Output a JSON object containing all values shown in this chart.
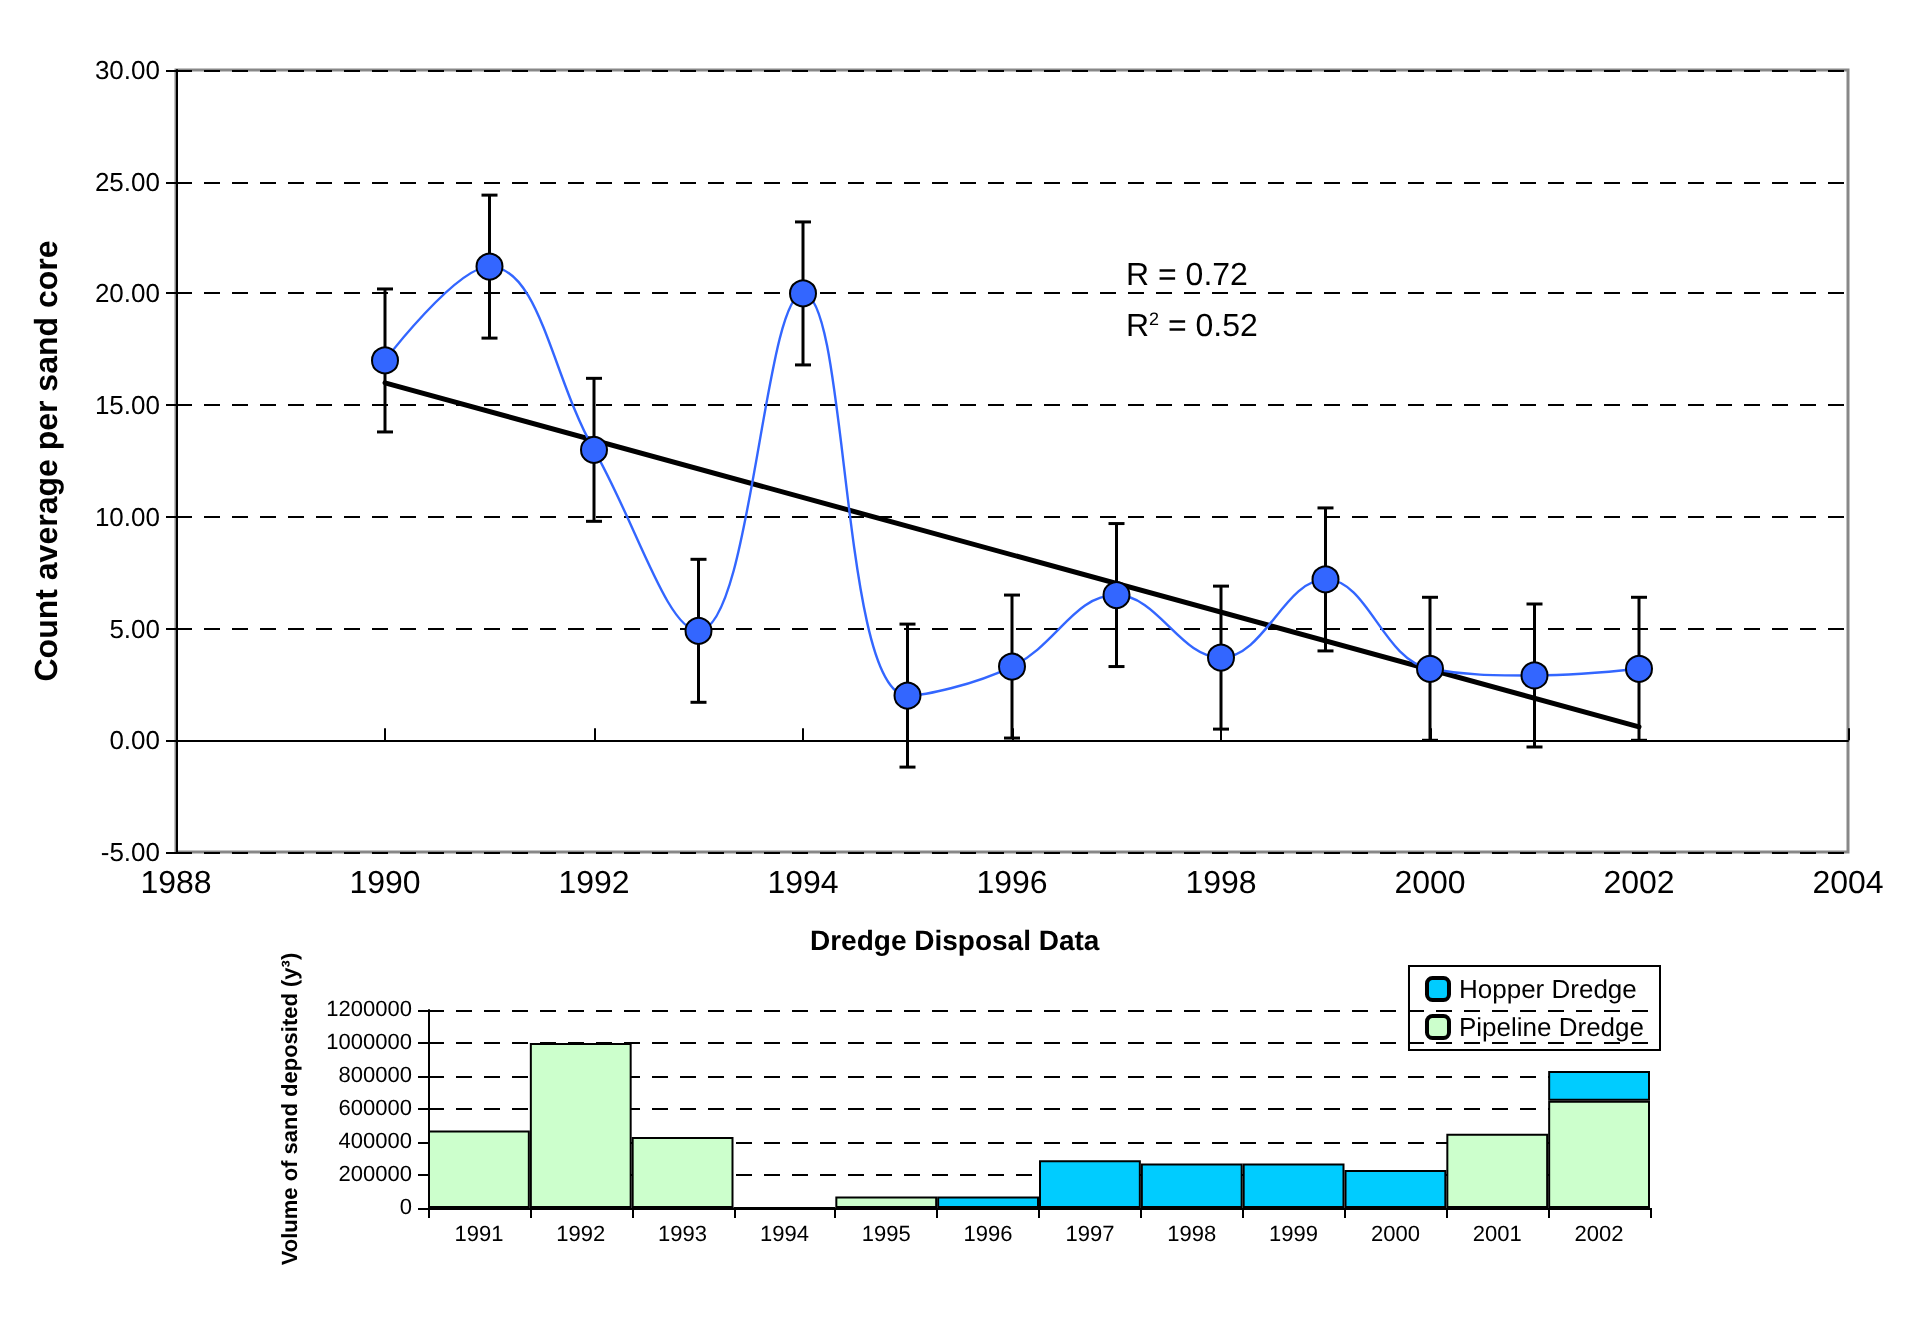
{
  "chart_data": [
    {
      "type": "line",
      "ylabel": "Count average per sand core",
      "xlim": [
        1988,
        2004
      ],
      "xticks": [
        1988,
        1990,
        1992,
        1994,
        1996,
        1998,
        2000,
        2002,
        2004
      ],
      "ylim": [
        -5,
        30
      ],
      "yticks": [
        {
          "value": -5,
          "label": "-5.00"
        },
        {
          "value": 0,
          "label": "0.00"
        },
        {
          "value": 5,
          "label": "5.00"
        },
        {
          "value": 10,
          "label": "10.00"
        },
        {
          "value": 15,
          "label": "15.00"
        },
        {
          "value": 20,
          "label": "20.00"
        },
        {
          "value": 25,
          "label": "25.00"
        },
        {
          "value": 30,
          "label": "30.00"
        }
      ],
      "grid": "y",
      "legend": false,
      "marker": "circle",
      "series": [
        {
          "color": "#3366ff",
          "x": [
            1990,
            1991,
            1992,
            1993,
            1994,
            1995,
            1996,
            1997,
            1998,
            1999,
            2000,
            2001,
            2002
          ],
          "values": [
            17.0,
            21.2,
            13.0,
            4.9,
            20.0,
            2.0,
            3.3,
            6.5,
            3.7,
            7.2,
            3.2,
            2.9,
            3.2
          ],
          "errors": [
            3.2,
            3.2,
            3.2,
            3.2,
            3.2,
            3.2,
            3.2,
            3.2,
            3.2,
            3.2,
            3.2,
            3.2,
            3.2
          ]
        },
        {
          "type": "line",
          "color": "#000000",
          "marker": "none",
          "x": [
            1990,
            2002
          ],
          "values": [
            16.0,
            0.6
          ]
        }
      ],
      "annotations": [
        "R = 0.72",
        "R$^{2}$ = 0.52"
      ]
    },
    {
      "type": "bar",
      "title": "Dredge Disposal Data",
      "ylabel": "Volume of sand deposited (y³)",
      "stacked": true,
      "categories": [
        "1991",
        "1992",
        "1993",
        "1994",
        "1995",
        "1996",
        "1997",
        "1998",
        "1999",
        "2000",
        "2001",
        "2002"
      ],
      "ylim": [
        0,
        1200000
      ],
      "yticks": [
        0,
        200000,
        400000,
        600000,
        800000,
        1000000,
        1200000
      ],
      "grid": "y",
      "legend": "top right",
      "series": [
        {
          "name": "Pipeline Dredge",
          "color": "#ccffcc",
          "values": [
            470000,
            1000000,
            430000,
            0,
            70000,
            null,
            null,
            null,
            null,
            null,
            450000,
            650000
          ]
        },
        {
          "name": "Hopper Dredge",
          "color": "#00ccff",
          "values": [
            null,
            null,
            null,
            null,
            null,
            70000,
            290000,
            270000,
            270000,
            230000,
            null,
            180000
          ]
        }
      ]
    }
  ]
}
